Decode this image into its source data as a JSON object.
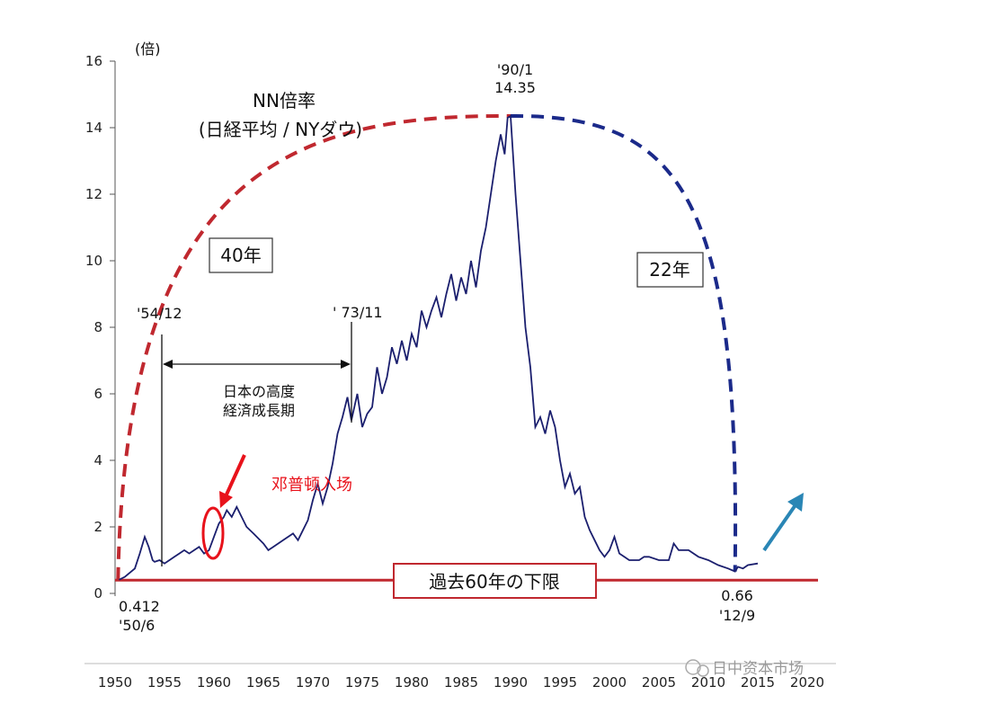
{
  "chart_data": {
    "type": "line",
    "title": "NN倍率",
    "subtitle": "(日経平均 / NYダウ)",
    "ylabel": "(倍)",
    "xlabel": "",
    "xlim": [
      1950,
      2020
    ],
    "ylim": [
      0,
      16
    ],
    "x_ticks": [
      "1950",
      "1955",
      "1960",
      "1965",
      "1970",
      "1975",
      "1980",
      "1985",
      "1990",
      "1995",
      "2000",
      "2005",
      "2010",
      "2015",
      "2020"
    ],
    "y_ticks": [
      "0",
      "2",
      "4",
      "6",
      "8",
      "10",
      "12",
      "14",
      "16"
    ],
    "series": [
      {
        "name": "",
        "color": "#1b1f6e",
        "x": [
          1950.4,
          1951,
          1952,
          1952.5,
          1953,
          1953.4,
          1953.8,
          1954,
          1954.5,
          1955,
          1955.5,
          1956,
          1956.5,
          1957,
          1957.5,
          1958,
          1958.5,
          1959,
          1959.5,
          1960,
          1960.5,
          1961,
          1961.3,
          1961.8,
          1962.3,
          1962.8,
          1963.3,
          1964,
          1965,
          1965.5,
          1966,
          1967,
          1968,
          1968.5,
          1969,
          1969.5,
          1970,
          1970.5,
          1971,
          1971.5,
          1972,
          1972.5,
          1973,
          1973.5,
          1973.9,
          1974.5,
          1975,
          1975.5,
          1976,
          1976.5,
          1977,
          1977.5,
          1978,
          1978.5,
          1979,
          1979.5,
          1980,
          1980.5,
          1981,
          1981.5,
          1982,
          1982.5,
          1983,
          1983.5,
          1984,
          1984.5,
          1985,
          1985.5,
          1986,
          1986.5,
          1987,
          1987.5,
          1988,
          1988.5,
          1989,
          1989.4,
          1989.7,
          1990,
          1990.5,
          1991,
          1991.5,
          1992,
          1992.5,
          1993,
          1993.5,
          1994,
          1994.5,
          1995,
          1995.5,
          1996,
          1996.5,
          1997,
          1997.5,
          1998,
          1998.5,
          1999,
          1999.5,
          2000,
          2000.5,
          2001,
          2001.5,
          2002,
          2002.5,
          2003,
          2003.5,
          2004,
          2005,
          2006,
          2006.5,
          2007,
          2008,
          2009,
          2010,
          2011,
          2012,
          2012.7,
          2013,
          2013.5,
          2014,
          2015
        ],
        "values": [
          0.41,
          0.5,
          0.75,
          1.2,
          1.7,
          1.4,
          1.0,
          0.95,
          1.0,
          0.9,
          1.0,
          1.1,
          1.2,
          1.3,
          1.2,
          1.3,
          1.4,
          1.2,
          1.3,
          1.7,
          2.1,
          2.3,
          2.5,
          2.3,
          2.6,
          2.3,
          2.0,
          1.8,
          1.5,
          1.3,
          1.4,
          1.6,
          1.8,
          1.6,
          1.9,
          2.2,
          2.8,
          3.3,
          2.7,
          3.2,
          3.9,
          4.8,
          5.3,
          5.9,
          5.2,
          6.0,
          5.0,
          5.4,
          5.6,
          6.8,
          6.0,
          6.5,
          7.4,
          6.9,
          7.6,
          7.0,
          7.8,
          7.4,
          8.5,
          8.0,
          8.5,
          8.9,
          8.3,
          9.0,
          9.6,
          8.8,
          9.5,
          9.0,
          10.0,
          9.2,
          10.3,
          11.0,
          12.0,
          13.0,
          13.8,
          13.2,
          14.3,
          14.35,
          12.0,
          10.0,
          8.0,
          6.8,
          5.0,
          5.3,
          4.8,
          5.5,
          5.0,
          4.0,
          3.2,
          3.6,
          3.0,
          3.2,
          2.3,
          1.9,
          1.6,
          1.3,
          1.1,
          1.3,
          1.7,
          1.2,
          1.1,
          1.0,
          1.0,
          1.0,
          1.1,
          1.1,
          1.0,
          1.0,
          1.5,
          1.3,
          1.3,
          1.1,
          1.0,
          0.85,
          0.75,
          0.66,
          0.8,
          0.75,
          0.85,
          0.9
        ]
      }
    ],
    "annotations": {
      "box_40": "40年",
      "box_22": "22年",
      "label_5412": "'54/12",
      "label_7311": "' 73/11",
      "label_9001_date": "'90/1",
      "label_9001_value": "14.35",
      "label_5006_value": "0.412",
      "label_5006_date": "'50/6",
      "label_1209_value": "0.66",
      "label_1209_date": "'12/9",
      "span_line1": "日本の高度",
      "span_line2": "経済成長期",
      "red_note": "邓普顿入场",
      "floor_label": "過去60年の下限",
      "floor_value": 0.4,
      "watermark": "日中资本市场"
    },
    "colors": {
      "line": "#1b1f6e",
      "red_dash": "#c0282f",
      "blue_dash": "#1b2a8a",
      "floor": "#c0282f",
      "arrow_red": "#e8121b",
      "arrow_teal": "#2a86b5"
    },
    "grid": false,
    "legend": "none"
  }
}
